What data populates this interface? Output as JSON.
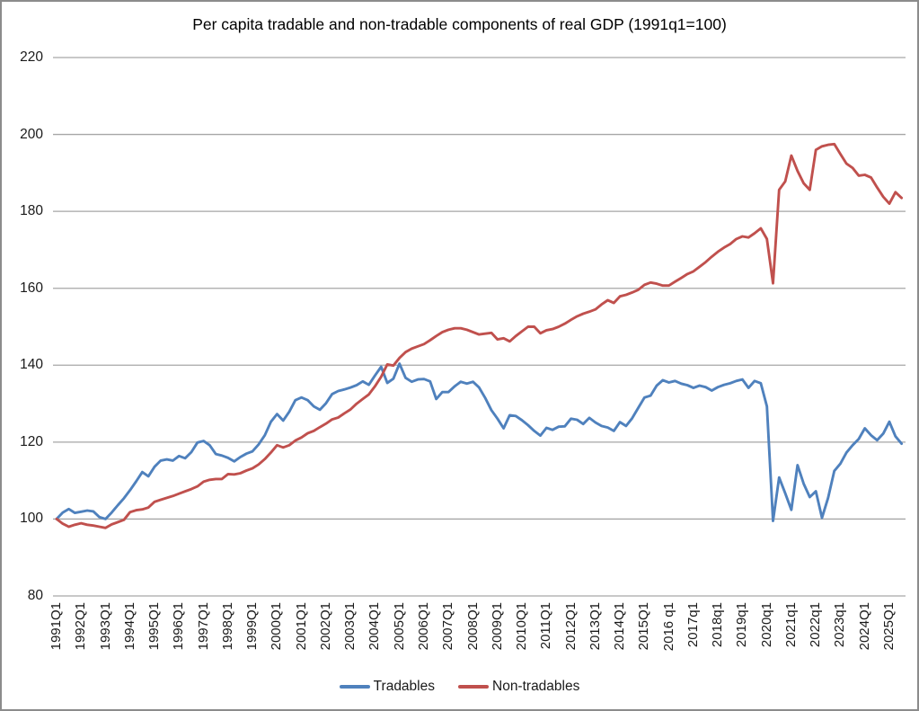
{
  "title": "Per capita tradable and non-tradable components of  real GDP  (1991q1=100)",
  "colors": {
    "tradables": "#4F81BD",
    "non_tradables": "#C0504D",
    "gridline": "#A6A6A6",
    "border": "#8C8C8C",
    "text": "#1A1A1A"
  },
  "legend": {
    "items": [
      {
        "label": "Tradables",
        "color": "#4F81BD"
      },
      {
        "label": "Non-tradables",
        "color": "#C0504D"
      }
    ]
  },
  "chart_data": {
    "type": "line",
    "title": "Per capita tradable and non-tradable components of  real GDP  (1991q1=100)",
    "xlabel": "",
    "ylabel": "",
    "ylim": [
      80,
      220
    ],
    "y_ticks": [
      220,
      200,
      180,
      160,
      140,
      120,
      100,
      80
    ],
    "grid": "horizontal",
    "legend_position": "bottom",
    "x_tick_step": 4,
    "x_tick_labels": [
      "1991Q1",
      "1992Q1",
      "1993Q1",
      "1994Q1",
      "1995Q1",
      "1996Q1",
      "1997Q1",
      "1998Q1",
      "1999Q1",
      "2000Q1",
      "2001Q1",
      "2002Q1",
      "2003Q1",
      "2004Q1",
      "2005Q1",
      "2006Q1",
      "2007Q1",
      "2008Q1",
      "2009Q1",
      "2010Q1",
      "2011Q1",
      "2012Q1",
      "2013Q1",
      "2014Q1",
      "2015Q1",
      "2016 q1",
      "2017q1",
      "2018q1",
      "2019q1",
      "2020q1",
      "2021q1",
      "2022q1",
      "2023q1",
      "2024Q1",
      "2025Q1"
    ],
    "quarters": [
      "1991Q1",
      "1991Q2",
      "1991Q3",
      "1991Q4",
      "1992Q1",
      "1992Q2",
      "1992Q3",
      "1992Q4",
      "1993Q1",
      "1993Q2",
      "1993Q3",
      "1993Q4",
      "1994Q1",
      "1994Q2",
      "1994Q3",
      "1994Q4",
      "1995Q1",
      "1995Q2",
      "1995Q3",
      "1995Q4",
      "1996Q1",
      "1996Q2",
      "1996Q3",
      "1996Q4",
      "1997Q1",
      "1997Q2",
      "1997Q3",
      "1997Q4",
      "1998Q1",
      "1998Q2",
      "1998Q3",
      "1998Q4",
      "1999Q1",
      "1999Q2",
      "1999Q3",
      "1999Q4",
      "2000Q1",
      "2000Q2",
      "2000Q3",
      "2000Q4",
      "2001Q1",
      "2001Q2",
      "2001Q3",
      "2001Q4",
      "2002Q1",
      "2002Q2",
      "2002Q3",
      "2002Q4",
      "2003Q1",
      "2003Q2",
      "2003Q3",
      "2003Q4",
      "2004Q1",
      "2004Q2",
      "2004Q3",
      "2004Q4",
      "2005Q1",
      "2005Q2",
      "2005Q3",
      "2005Q4",
      "2006Q1",
      "2006Q2",
      "2006Q3",
      "2006Q4",
      "2007Q1",
      "2007Q2",
      "2007Q3",
      "2007Q4",
      "2008Q1",
      "2008Q2",
      "2008Q3",
      "2008Q4",
      "2009Q1",
      "2009Q2",
      "2009Q3",
      "2009Q4",
      "2010Q1",
      "2010Q2",
      "2010Q3",
      "2010Q4",
      "2011Q1",
      "2011Q2",
      "2011Q3",
      "2011Q4",
      "2012Q1",
      "2012Q2",
      "2012Q3",
      "2012Q4",
      "2013Q1",
      "2013Q2",
      "2013Q3",
      "2013Q4",
      "2014Q1",
      "2014Q2",
      "2014Q3",
      "2014Q4",
      "2015Q1",
      "2015Q2",
      "2015Q3",
      "2015Q4",
      "2016Q1",
      "2016Q2",
      "2016Q3",
      "2016Q4",
      "2017Q1",
      "2017Q2",
      "2017Q3",
      "2017Q4",
      "2018Q1",
      "2018Q2",
      "2018Q3",
      "2018Q4",
      "2019Q1",
      "2019Q2",
      "2019Q3",
      "2019Q4",
      "2020Q1",
      "2020Q2",
      "2020Q3",
      "2020Q4",
      "2021Q1",
      "2021Q2",
      "2021Q3",
      "2021Q4",
      "2022Q1",
      "2022Q2",
      "2022Q3",
      "2022Q4",
      "2023Q1",
      "2023Q2",
      "2023Q3",
      "2023Q4",
      "2024Q1",
      "2024Q2",
      "2024Q3",
      "2024Q4",
      "2025Q1",
      "2025Q2",
      "2025Q3"
    ],
    "series": [
      {
        "name": "Tradables",
        "color": "#4F81BD",
        "values": [
          100.0,
          101.7,
          102.6,
          101.6,
          101.9,
          102.2,
          102.0,
          100.5,
          100.0,
          101.7,
          103.6,
          105.4,
          107.5,
          109.8,
          112.2,
          111.1,
          113.6,
          115.2,
          115.5,
          115.2,
          116.4,
          115.8,
          117.4,
          119.9,
          120.3,
          119.2,
          116.9,
          116.5,
          115.9,
          115.0,
          116.1,
          117.0,
          117.6,
          119.4,
          121.8,
          125.3,
          127.3,
          125.6,
          127.9,
          130.9,
          131.6,
          130.9,
          129.3,
          128.4,
          130.1,
          132.5,
          133.3,
          133.7,
          134.2,
          134.8,
          135.8,
          134.9,
          137.3,
          139.6,
          135.4,
          136.5,
          140.4,
          136.7,
          135.7,
          136.3,
          136.4,
          135.8,
          131.2,
          133.0,
          133.0,
          134.5,
          135.7,
          135.2,
          135.7,
          134.2,
          131.5,
          128.3,
          126.1,
          123.6,
          127.0,
          126.8,
          125.7,
          124.4,
          122.9,
          121.7,
          123.7,
          123.2,
          124.0,
          124.1,
          126.1,
          125.8,
          124.7,
          126.3,
          125.1,
          124.2,
          123.8,
          122.9,
          125.2,
          124.2,
          126.2,
          128.9,
          131.6,
          132.1,
          134.7,
          136.1,
          135.5,
          135.9,
          135.2,
          134.8,
          134.1,
          134.7,
          134.3,
          133.4,
          134.3,
          134.9,
          135.3,
          135.9,
          136.3,
          134.1,
          135.9,
          135.3,
          129.3,
          99.5,
          110.8,
          106.7,
          102.4,
          114.0,
          109.2,
          105.7,
          107.2,
          100.3,
          105.5,
          112.5,
          114.4,
          117.3,
          119.2,
          120.8,
          123.6,
          121.8,
          120.5,
          122.2,
          125.3,
          121.5,
          119.6
        ]
      },
      {
        "name": "Non-tradables",
        "color": "#C0504D",
        "values": [
          100.0,
          98.8,
          98.0,
          98.5,
          98.9,
          98.5,
          98.3,
          98.0,
          97.7,
          98.6,
          99.2,
          99.8,
          101.8,
          102.3,
          102.5,
          103.0,
          104.5,
          105.0,
          105.5,
          106.0,
          106.6,
          107.2,
          107.8,
          108.5,
          109.7,
          110.2,
          110.4,
          110.4,
          111.7,
          111.6,
          111.9,
          112.6,
          113.2,
          114.2,
          115.6,
          117.3,
          119.2,
          118.6,
          119.2,
          120.4,
          121.2,
          122.3,
          122.9,
          123.9,
          124.8,
          125.9,
          126.4,
          127.5,
          128.5,
          130.0,
          131.2,
          132.4,
          134.5,
          137.0,
          140.2,
          139.9,
          141.9,
          143.4,
          144.3,
          144.9,
          145.5,
          146.5,
          147.6,
          148.6,
          149.2,
          149.6,
          149.6,
          149.2,
          148.6,
          148.0,
          148.2,
          148.4,
          146.7,
          147.0,
          146.2,
          147.6,
          148.8,
          150.0,
          150.0,
          148.3,
          149.1,
          149.4,
          150.0,
          150.8,
          151.8,
          152.7,
          153.4,
          153.9,
          154.5,
          155.8,
          156.9,
          156.2,
          157.9,
          158.3,
          158.9,
          159.6,
          160.9,
          161.5,
          161.2,
          160.7,
          160.7,
          161.7,
          162.7,
          163.7,
          164.4,
          165.6,
          166.8,
          168.2,
          169.5,
          170.6,
          171.5,
          172.8,
          173.5,
          173.2,
          174.3,
          175.6,
          172.8,
          161.3,
          185.6,
          187.8,
          194.5,
          190.5,
          187.3,
          185.6,
          196.0,
          196.9,
          197.3,
          197.5,
          194.9,
          192.4,
          191.3,
          189.3,
          189.5,
          188.8,
          186.2,
          183.8,
          182.0,
          185.0,
          183.5
        ]
      }
    ]
  }
}
